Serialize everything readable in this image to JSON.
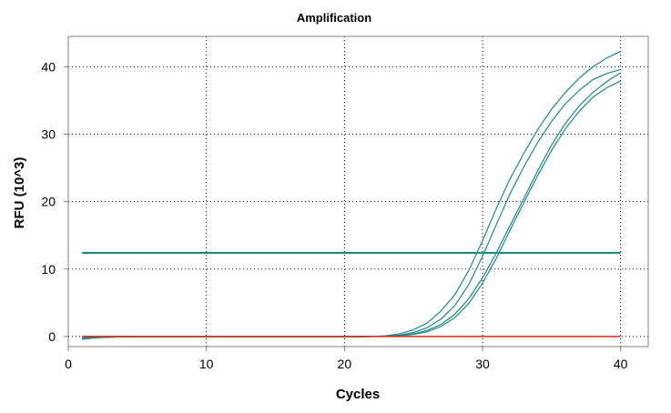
{
  "chart_data": {
    "type": "line",
    "title": "Amplification",
    "xlabel": "Cycles",
    "ylabel": "RFU (10^3)",
    "xlim": [
      0,
      42
    ],
    "ylim": [
      -1.5,
      44.5
    ],
    "xticks": [
      0,
      10,
      20,
      30,
      40
    ],
    "yticks": [
      0,
      10,
      20,
      30,
      40
    ],
    "grid": true,
    "legend": "none",
    "series": [
      {
        "color": "#1a8a8a",
        "x": [
          1,
          2,
          3,
          4,
          5,
          6,
          7,
          8,
          9,
          10,
          11,
          12,
          13,
          14,
          15,
          16,
          17,
          18,
          19,
          20,
          21,
          22,
          23,
          24,
          25,
          26,
          27,
          28,
          29,
          30,
          31,
          32,
          33,
          34,
          35,
          36,
          37,
          38,
          39,
          40
        ],
        "y": [
          -0.4,
          -0.2,
          -0.1,
          -0.05,
          -0.05,
          -0.05,
          -0.05,
          -0.05,
          -0.05,
          -0.05,
          -0.05,
          -0.05,
          -0.05,
          -0.05,
          -0.05,
          -0.05,
          -0.05,
          -0.05,
          -0.05,
          -0.05,
          -0.05,
          0.0,
          0.1,
          0.4,
          1.0,
          2.0,
          3.8,
          6.2,
          9.8,
          14.2,
          19.0,
          23.4,
          27.2,
          30.7,
          33.7,
          36.2,
          38.3,
          40.0,
          41.3,
          42.3
        ]
      },
      {
        "color": "#1a8a8a",
        "x": [
          1,
          2,
          3,
          4,
          5,
          6,
          7,
          8,
          9,
          10,
          11,
          12,
          13,
          14,
          15,
          16,
          17,
          18,
          19,
          20,
          21,
          22,
          23,
          24,
          25,
          26,
          27,
          28,
          29,
          30,
          31,
          32,
          33,
          34,
          35,
          36,
          37,
          38,
          39,
          40
        ],
        "y": [
          -0.3,
          -0.15,
          -0.1,
          -0.05,
          -0.05,
          -0.05,
          -0.05,
          -0.05,
          -0.05,
          -0.05,
          -0.05,
          -0.05,
          -0.05,
          -0.05,
          -0.05,
          -0.05,
          -0.05,
          -0.05,
          -0.05,
          -0.05,
          -0.05,
          0.0,
          0.05,
          0.2,
          0.6,
          1.3,
          2.6,
          4.6,
          7.7,
          11.9,
          16.6,
          21.2,
          25.2,
          28.8,
          31.9,
          34.5,
          36.5,
          38.1,
          39.0,
          39.6
        ]
      },
      {
        "color": "#1a8a8a",
        "x": [
          1,
          2,
          3,
          4,
          5,
          6,
          7,
          8,
          9,
          10,
          11,
          12,
          13,
          14,
          15,
          16,
          17,
          18,
          19,
          20,
          21,
          22,
          23,
          24,
          25,
          26,
          27,
          28,
          29,
          30,
          31,
          32,
          33,
          34,
          35,
          36,
          37,
          38,
          39,
          40
        ],
        "y": [
          -0.2,
          -0.1,
          -0.05,
          -0.05,
          -0.05,
          -0.05,
          -0.05,
          -0.05,
          -0.05,
          -0.05,
          -0.05,
          -0.05,
          -0.05,
          -0.05,
          -0.05,
          -0.05,
          -0.05,
          -0.05,
          -0.05,
          -0.05,
          -0.05,
          0.0,
          0.05,
          0.15,
          0.4,
          0.9,
          1.8,
          3.3,
          5.6,
          8.7,
          12.4,
          16.5,
          20.5,
          24.6,
          28.4,
          31.6,
          34.2,
          36.2,
          37.8,
          39.1
        ]
      },
      {
        "color": "#1a8a8a",
        "x": [
          1,
          2,
          3,
          4,
          5,
          6,
          7,
          8,
          9,
          10,
          11,
          12,
          13,
          14,
          15,
          16,
          17,
          18,
          19,
          20,
          21,
          22,
          23,
          24,
          25,
          26,
          27,
          28,
          29,
          30,
          31,
          32,
          33,
          34,
          35,
          36,
          37,
          38,
          39,
          40
        ],
        "y": [
          -0.3,
          -0.15,
          -0.1,
          -0.05,
          -0.05,
          -0.05,
          -0.05,
          -0.05,
          -0.05,
          -0.05,
          -0.05,
          -0.05,
          -0.05,
          -0.05,
          -0.05,
          -0.05,
          -0.05,
          -0.05,
          -0.05,
          -0.05,
          -0.05,
          0.0,
          0.0,
          0.1,
          0.3,
          0.7,
          1.5,
          2.8,
          4.9,
          7.9,
          11.6,
          15.8,
          19.9,
          23.9,
          27.6,
          30.8,
          33.4,
          35.5,
          36.9,
          37.9
        ]
      },
      {
        "color": "#e8201a",
        "x": [
          1,
          2,
          3,
          4,
          5,
          6,
          7,
          8,
          9,
          10,
          11,
          12,
          13,
          14,
          15,
          16,
          17,
          18,
          19,
          20,
          21,
          22,
          23,
          24,
          25,
          26,
          27,
          28,
          29,
          30,
          31,
          32,
          33,
          34,
          35,
          36,
          37,
          38,
          39,
          40
        ],
        "y": [
          0,
          0,
          0,
          0,
          0,
          0,
          0,
          0,
          0,
          0,
          0,
          0,
          0,
          0,
          0,
          0,
          0,
          0,
          0,
          0,
          0,
          0,
          0,
          0,
          0,
          0,
          0,
          0,
          0,
          0,
          0,
          0,
          0,
          0,
          0,
          0,
          0,
          0,
          0,
          0
        ]
      }
    ],
    "threshold": {
      "value": 12.4,
      "x_start": 1,
      "x_end": 40,
      "color": "#1a8a8a"
    },
    "colors": {
      "grid": "#000000",
      "axis": "#808080",
      "text": "#000000"
    }
  }
}
